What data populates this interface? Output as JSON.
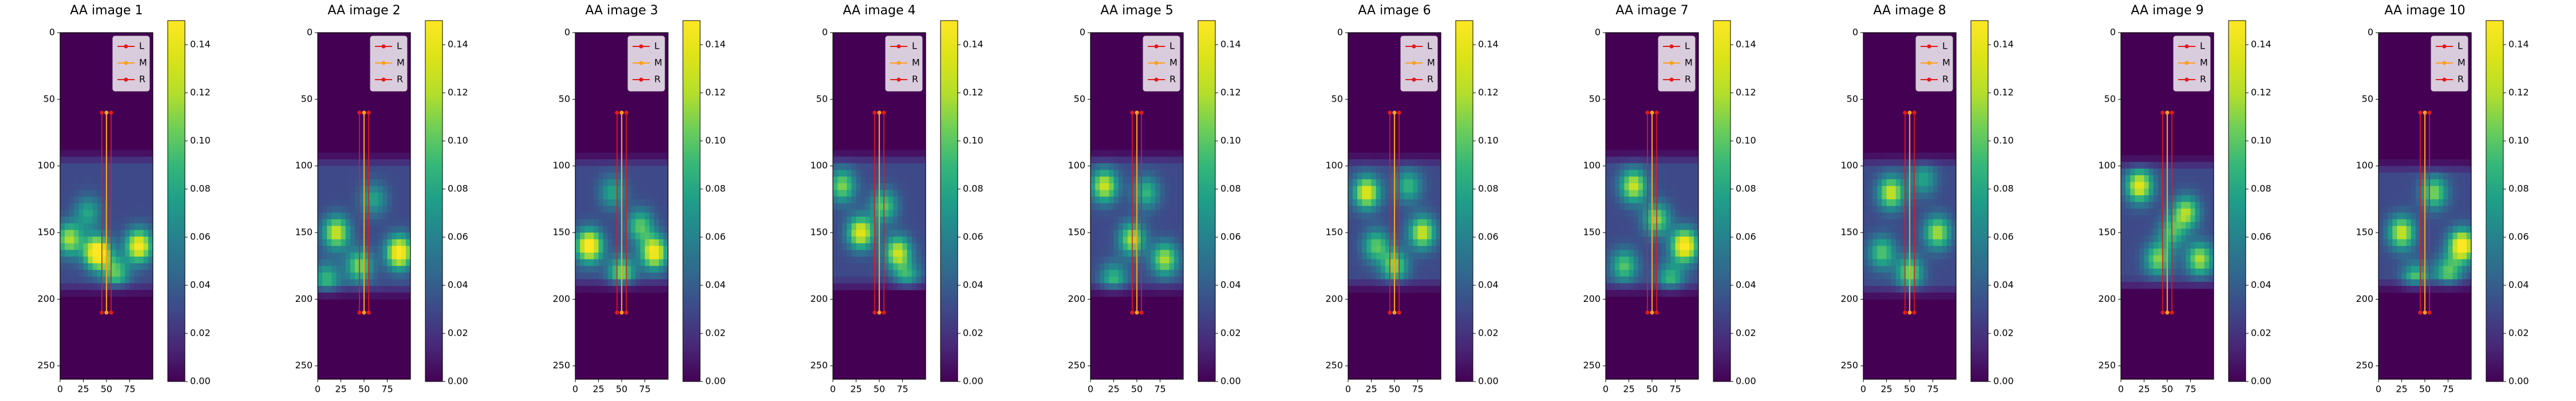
{
  "chart_data": {
    "type": "heatmap",
    "panel_count": 10,
    "colormap": "viridis",
    "image_extent": {
      "x": [
        0,
        100
      ],
      "y": [
        0,
        260
      ]
    },
    "x_ticks": [
      "0",
      "25",
      "50",
      "75"
    ],
    "y_ticks": [
      "0",
      "50",
      "100",
      "150",
      "200",
      "250"
    ],
    "colorbar": {
      "range": [
        0.0,
        0.15
      ],
      "ticks": [
        "0.00",
        "0.02",
        "0.04",
        "0.06",
        "0.08",
        "0.10",
        "0.12",
        "0.14"
      ]
    },
    "legend": {
      "placement": "top-right",
      "entries": [
        {
          "label": "L",
          "color": "#e31a1c"
        },
        {
          "label": "M",
          "color": "#ff9f1c"
        },
        {
          "label": "R",
          "color": "#e31a1c"
        }
      ]
    },
    "lines": {
      "L_x": 45,
      "M_x": 50,
      "R_x": 55,
      "y_top": 60,
      "y_bottom": 210
    },
    "panels": [
      {
        "title": "AA image 1",
        "region": {
          "top": 88,
          "bottom": 198,
          "left": 0,
          "right": 100
        },
        "blobs": [
          [
            40,
            165,
            0.14
          ],
          [
            85,
            160,
            0.12
          ],
          [
            10,
            155,
            0.09
          ],
          [
            30,
            135,
            0.05
          ],
          [
            60,
            180,
            0.07
          ]
        ]
      },
      {
        "title": "AA image 2",
        "region": {
          "top": 90,
          "bottom": 200,
          "left": 0,
          "right": 100
        },
        "blobs": [
          [
            88,
            165,
            0.13
          ],
          [
            20,
            150,
            0.1
          ],
          [
            45,
            175,
            0.08
          ],
          [
            60,
            125,
            0.05
          ],
          [
            10,
            185,
            0.06
          ]
        ]
      },
      {
        "title": "AA image 3",
        "region": {
          "top": 90,
          "bottom": 195,
          "left": 0,
          "right": 100
        },
        "blobs": [
          [
            15,
            160,
            0.13
          ],
          [
            85,
            165,
            0.12
          ],
          [
            50,
            180,
            0.08
          ],
          [
            40,
            120,
            0.05
          ],
          [
            70,
            145,
            0.07
          ]
        ]
      },
      {
        "title": "AA image 4",
        "region": {
          "top": 88,
          "bottom": 195,
          "left": 0,
          "right": 100
        },
        "blobs": [
          [
            30,
            150,
            0.11
          ],
          [
            70,
            165,
            0.1
          ],
          [
            10,
            115,
            0.08
          ],
          [
            55,
            130,
            0.07
          ],
          [
            80,
            185,
            0.06
          ]
        ]
      },
      {
        "title": "AA image 5",
        "region": {
          "top": 88,
          "bottom": 198,
          "left": 0,
          "right": 100
        },
        "blobs": [
          [
            15,
            115,
            0.1
          ],
          [
            45,
            155,
            0.09
          ],
          [
            80,
            170,
            0.09
          ],
          [
            60,
            120,
            0.06
          ],
          [
            25,
            185,
            0.06
          ]
        ]
      },
      {
        "title": "AA image 6",
        "region": {
          "top": 90,
          "bottom": 195,
          "left": 0,
          "right": 100
        },
        "blobs": [
          [
            20,
            120,
            0.11
          ],
          [
            80,
            150,
            0.1
          ],
          [
            50,
            175,
            0.08
          ],
          [
            30,
            160,
            0.07
          ],
          [
            65,
            115,
            0.06
          ]
        ]
      },
      {
        "title": "AA image 7",
        "region": {
          "top": 88,
          "bottom": 198,
          "left": 0,
          "right": 100
        },
        "blobs": [
          [
            85,
            160,
            0.13
          ],
          [
            30,
            115,
            0.1
          ],
          [
            55,
            140,
            0.08
          ],
          [
            20,
            175,
            0.07
          ],
          [
            70,
            185,
            0.06
          ]
        ]
      },
      {
        "title": "AA image 8",
        "region": {
          "top": 90,
          "bottom": 200,
          "left": 0,
          "right": 100
        },
        "blobs": [
          [
            30,
            120,
            0.1
          ],
          [
            80,
            150,
            0.09
          ],
          [
            50,
            180,
            0.08
          ],
          [
            20,
            165,
            0.07
          ],
          [
            65,
            110,
            0.05
          ]
        ]
      },
      {
        "title": "AA image 9",
        "region": {
          "top": 92,
          "bottom": 195,
          "left": 0,
          "right": 100
        },
        "blobs": [
          [
            20,
            115,
            0.11
          ],
          [
            70,
            135,
            0.09
          ],
          [
            85,
            170,
            0.09
          ],
          [
            40,
            170,
            0.08
          ],
          [
            55,
            150,
            0.06
          ]
        ]
      },
      {
        "title": "AA image 10",
        "region": {
          "top": 95,
          "bottom": 195,
          "left": 0,
          "right": 100
        },
        "blobs": [
          [
            90,
            160,
            0.13
          ],
          [
            25,
            150,
            0.1
          ],
          [
            60,
            120,
            0.08
          ],
          [
            40,
            185,
            0.07
          ],
          [
            75,
            180,
            0.07
          ]
        ]
      }
    ]
  }
}
